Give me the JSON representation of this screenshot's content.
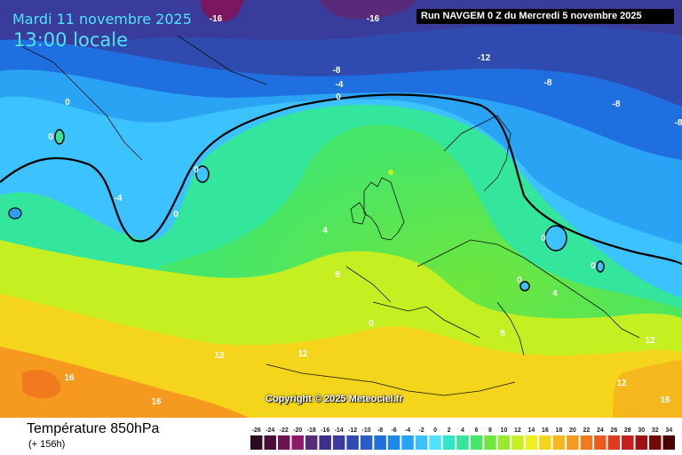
{
  "header": {
    "date": "Mardi 11 novembre 2025",
    "time": "13:00 locale",
    "run": "Run NAVGEM 0 Z du Mercredi 5 novembre 2025"
  },
  "copyright": "Copyright © 2025 Meteociel.fr",
  "footer": {
    "title": "Température 850hPa",
    "subtitle": "(+ 156h)"
  },
  "legend": {
    "values": [
      "-26",
      "-24",
      "-22",
      "-20",
      "-18",
      "-16",
      "-14",
      "-12",
      "-10",
      "-8",
      "-6",
      "-4",
      "-2",
      "0",
      "2",
      "4",
      "6",
      "8",
      "10",
      "12",
      "14",
      "16",
      "18",
      "20",
      "22",
      "24",
      "26",
      "28",
      "30",
      "32",
      "34"
    ],
    "colors": [
      "#2a0a1e",
      "#4a0f36",
      "#6b1450",
      "#8e1a6c",
      "#5a2a7a",
      "#3d2f8a",
      "#3a3c9c",
      "#2f4bb0",
      "#2a5cc8",
      "#1f6fe0",
      "#1f88ee",
      "#2aa3f5",
      "#3cc3ff",
      "#4ee2ff",
      "#2fe6c8",
      "#33e69c",
      "#46e66a",
      "#6ee63c",
      "#99ea2c",
      "#c6ef22",
      "#eef21c",
      "#f5d51c",
      "#f5b81c",
      "#f59a1e",
      "#f27a1e",
      "#ee5a1e",
      "#e03a1e",
      "#c41e1e",
      "#a01010",
      "#760808",
      "#4a0404"
    ]
  },
  "contour_labels": [
    {
      "text": "-16"
    },
    {
      "text": "-16"
    },
    {
      "text": "-12"
    },
    {
      "text": "-8"
    },
    {
      "text": "-4"
    },
    {
      "text": "0"
    },
    {
      "text": "-8"
    },
    {
      "text": "-8"
    },
    {
      "text": "-8"
    },
    {
      "text": "0"
    },
    {
      "text": "0"
    },
    {
      "text": "0"
    },
    {
      "text": "-4"
    },
    {
      "text": "0"
    },
    {
      "text": "4"
    },
    {
      "text": "8"
    },
    {
      "text": "0"
    },
    {
      "text": "0"
    },
    {
      "text": "4"
    },
    {
      "text": "0"
    },
    {
      "text": "0"
    },
    {
      "text": "8"
    },
    {
      "text": "12"
    },
    {
      "text": "12"
    },
    {
      "text": "12"
    },
    {
      "text": "12"
    },
    {
      "text": "16"
    },
    {
      "text": "16"
    },
    {
      "text": "16"
    }
  ]
}
